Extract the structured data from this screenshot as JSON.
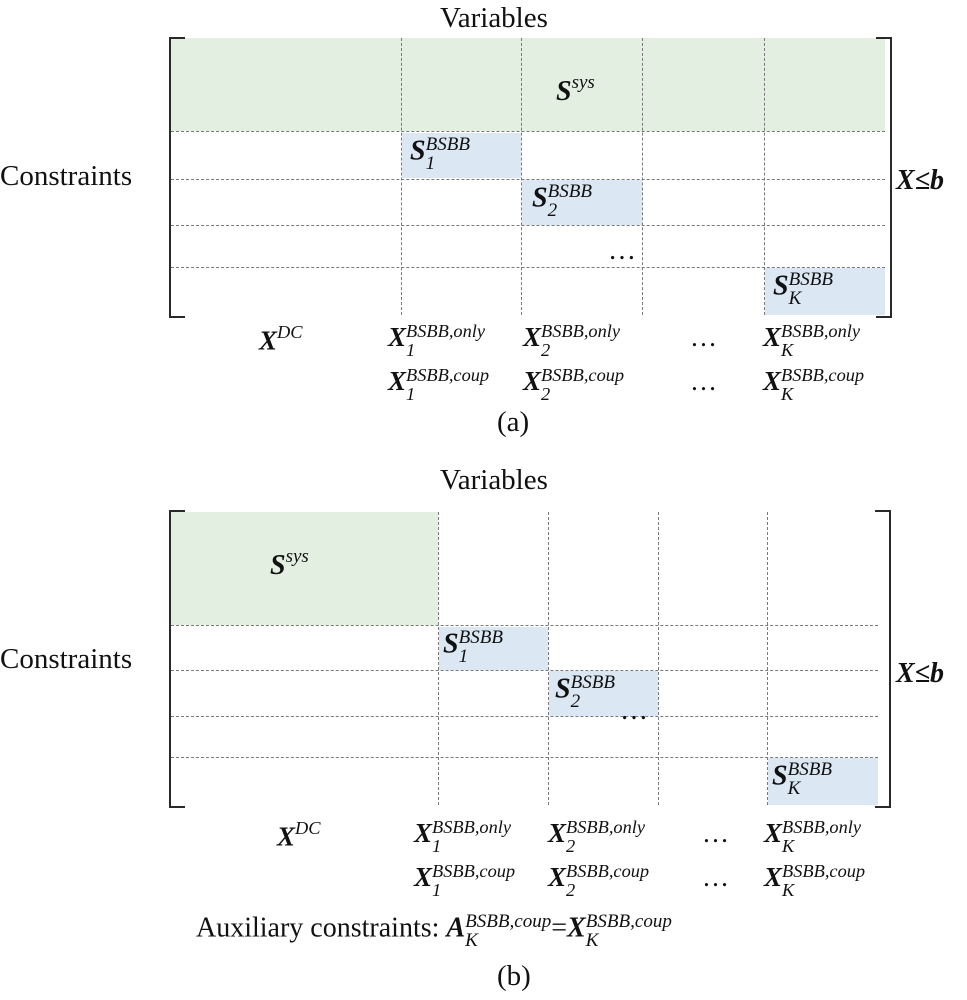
{
  "panel_a": {
    "variables_label": "Variables",
    "constraints_label": "Constraints",
    "caption": "(a)",
    "rhs": "X≤b",
    "blocks": {
      "s_sys": {
        "base": "S",
        "sup": "sys"
      },
      "s1": {
        "base": "S",
        "sup": "BSBB",
        "sub": "1"
      },
      "s2": {
        "base": "S",
        "sup": "BSBB",
        "sub": "2"
      },
      "sk": {
        "base": "S",
        "sup": "BSBB",
        "sub": "K"
      },
      "dots": "…"
    },
    "vars": {
      "xdc": {
        "base": "X",
        "sup": "DC"
      },
      "x1_only": {
        "base": "X",
        "sup": "BSBB,only",
        "sub": "1"
      },
      "x2_only": {
        "base": "X",
        "sup": "BSBB,only",
        "sub": "2"
      },
      "xk_only": {
        "base": "X",
        "sup": "BSBB,only",
        "sub": "K"
      },
      "x1_coup": {
        "base": "X",
        "sup": "BSBB,coup",
        "sub": "1"
      },
      "x2_coup": {
        "base": "X",
        "sup": "BSBB,coup",
        "sub": "2"
      },
      "xk_coup": {
        "base": "X",
        "sup": "BSBB,coup",
        "sub": "K"
      },
      "dots": "…"
    }
  },
  "panel_b": {
    "variables_label": "Variables",
    "constraints_label": "Constraints",
    "caption": "(b)",
    "rhs": "X≤b",
    "blocks": {
      "s_sys": {
        "base": "S",
        "sup": "sys"
      },
      "s1": {
        "base": "S",
        "sup": "BSBB",
        "sub": "1"
      },
      "s2": {
        "base": "S",
        "sup": "BSBB",
        "sub": "2"
      },
      "sk": {
        "base": "S",
        "sup": "BSBB",
        "sub": "K"
      },
      "dots": "…"
    },
    "vars": {
      "xdc": {
        "base": "X",
        "sup": "DC"
      },
      "x1_only": {
        "base": "X",
        "sup": "BSBB,only",
        "sub": "1"
      },
      "x2_only": {
        "base": "X",
        "sup": "BSBB,only",
        "sub": "2"
      },
      "xk_only": {
        "base": "X",
        "sup": "BSBB,only",
        "sub": "K"
      },
      "x1_coup": {
        "base": "X",
        "sup": "BSBB,coup",
        "sub": "1"
      },
      "x2_coup": {
        "base": "X",
        "sup": "BSBB,coup",
        "sub": "2"
      },
      "xk_coup": {
        "base": "X",
        "sup": "BSBB,coup",
        "sub": "K"
      },
      "dots": "…"
    },
    "aux": {
      "prefix": "Auxiliary constraints: ",
      "lhs": {
        "base": "A",
        "sup": "BSBB,coup",
        "sub": "K"
      },
      "eq": "=",
      "rhs": {
        "base": "X",
        "sup": "BSBB,coup",
        "sub": "K"
      }
    }
  },
  "colors": {
    "system_block": "#e3efe1",
    "subproblem_block": "#dbe7f2",
    "grid": "#7a7a7a",
    "bracket": "#2a2a2a"
  }
}
